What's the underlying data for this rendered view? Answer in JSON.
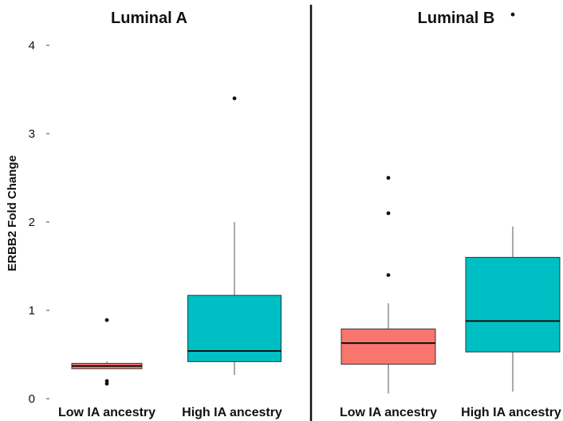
{
  "chart_data": {
    "type": "box",
    "ylabel": "ERBB2 Fold Change",
    "ylim": [
      0,
      4.35
    ],
    "yticks": [
      0,
      1,
      2,
      3,
      4
    ],
    "grid": false,
    "legend": "none",
    "panels": [
      {
        "title": "Luminal A",
        "categories": [
          "Low IA ancestry",
          "High IA ancestry"
        ],
        "boxes": [
          {
            "category": "Low IA ancestry",
            "color": "#F8766D",
            "whisker_low": 0.34,
            "q1": 0.34,
            "median": 0.37,
            "q3": 0.4,
            "whisker_high": 0.42,
            "outliers": [
              0.89,
              0.2,
              0.17
            ]
          },
          {
            "category": "High IA ancestry",
            "color": "#00BFC4",
            "whisker_low": 0.27,
            "q1": 0.42,
            "median": 0.54,
            "q3": 1.17,
            "whisker_high": 2.0,
            "outliers": [
              3.4
            ]
          }
        ]
      },
      {
        "title": "Luminal B",
        "categories": [
          "Low IA ancestry",
          "High IA ancestry"
        ],
        "boxes": [
          {
            "category": "Low IA ancestry",
            "color": "#F8766D",
            "whisker_low": 0.06,
            "q1": 0.39,
            "median": 0.63,
            "q3": 0.79,
            "whisker_high": 1.08,
            "outliers": [
              1.4,
              2.1,
              2.5
            ]
          },
          {
            "category": "High IA ancestry",
            "color": "#00BFC4",
            "whisker_low": 0.08,
            "q1": 0.53,
            "median": 0.88,
            "q3": 1.6,
            "whisker_high": 1.95,
            "outliers": [
              4.35
            ]
          }
        ]
      }
    ]
  }
}
